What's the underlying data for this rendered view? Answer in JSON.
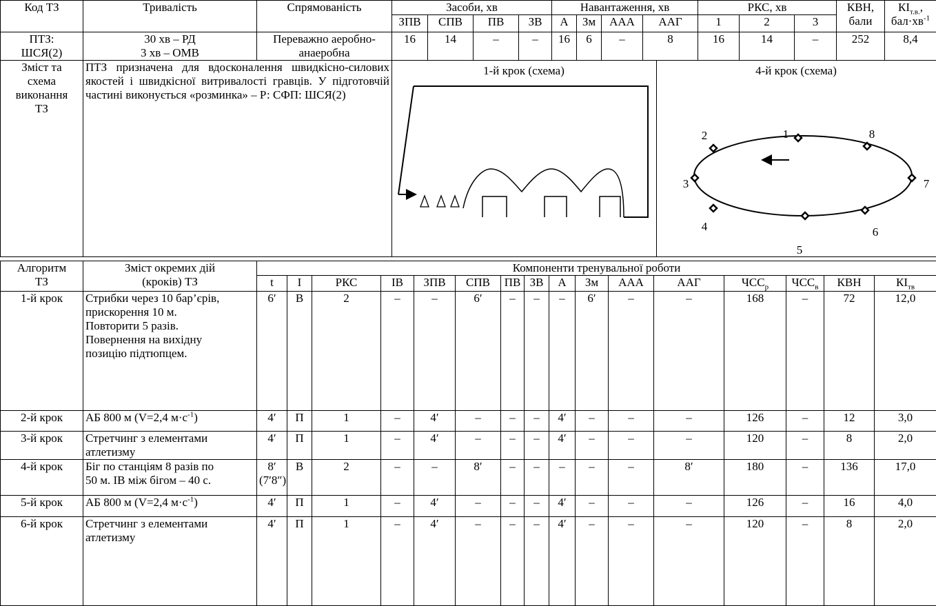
{
  "top": {
    "headers": {
      "code": "Код ТЗ",
      "duration": "Тривалість",
      "direction": "Спрямованість",
      "means": "Засоби, хв",
      "load": "Навантаження, хв",
      "rks": "РКС, хв",
      "kvn": [
        "КВН,",
        "бали"
      ],
      "ki": [
        {
          "main": "КІ",
          "sub": "т.в.",
          "comma": ","
        },
        {
          "main": "бал·хв",
          "sup": "-1"
        }
      ]
    },
    "subheaders": [
      "ЗПВ",
      "СПВ",
      "ПВ",
      "ЗВ",
      "А",
      "Зм",
      "ААА",
      "ААГ",
      "1",
      "2",
      "3"
    ],
    "row": {
      "code": [
        "ПТЗ:",
        "ШСЯ(2)"
      ],
      "duration": [
        "30 хв – РД",
        "3 хв – ОМВ"
      ],
      "direction": [
        "Переважно аеробно-",
        "анаеробна"
      ],
      "values": [
        "16",
        "14",
        "–",
        "–",
        "16",
        "6",
        "–",
        "8",
        "16",
        "14",
        "–",
        "252",
        "8,4"
      ]
    },
    "content": {
      "label": [
        "Зміст та",
        "схема",
        "виконання",
        "ТЗ"
      ],
      "text": "ПТЗ призначена для вдосконалення швидкісно-силових якостей і швидкісної витривалості гравців. У підготовчій частині виконується «розминка» – Р: СФП: ШСЯ(2)",
      "scheme1_title": "1-й крок  (схема)",
      "scheme4_title": "4-й крок (схема)",
      "scheme4_labels": [
        "1",
        "2",
        "3",
        "4",
        "5",
        "6",
        "7",
        "8"
      ]
    }
  },
  "bottom": {
    "headers": {
      "algorithm": [
        "Алгоритм",
        "ТЗ"
      ],
      "content": [
        "Зміст окремих дій",
        "(кроків) ТЗ"
      ],
      "components": "Компоненти тренувальної роботи"
    },
    "columns": [
      "t",
      "I",
      "РКС",
      "ІВ",
      "ЗПВ",
      "СПВ",
      "ПВ",
      "ЗВ",
      "А",
      "Зм",
      "ААА",
      "ААГ",
      {
        "main": "ЧСС",
        "sub": "р"
      },
      {
        "main": "ЧСС",
        "sub": "в"
      },
      "КВН",
      {
        "main": "КІ",
        "sub": "тв"
      }
    ],
    "rows": [
      {
        "step": "1-й крок",
        "lines": [
          "Стрибки через 10 бар’єрів,",
          "прискорення 10 м.",
          "Повторити 5 разів.",
          "Повернення на вихідну",
          "позицію підтюпцем."
        ],
        "cells": [
          "6′",
          "В",
          "2",
          "–",
          "–",
          "6′",
          "–",
          "–",
          "–",
          "6′",
          "–",
          "–",
          "168",
          "–",
          "72",
          "12,0"
        ]
      },
      {
        "step": "2-й крок",
        "lines": [
          {
            "text": "АБ 800 м (V=2,4 м·с",
            "sup": "-1",
            "tail": ")"
          }
        ],
        "cells": [
          "4′",
          "П",
          "1",
          "–",
          "4′",
          "–",
          "–",
          "–",
          "4′",
          "–",
          "–",
          "–",
          "126",
          "–",
          "12",
          "3,0"
        ]
      },
      {
        "step": "3-й крок",
        "lines": [
          "Стретчинг з елементами",
          "атлетизму"
        ],
        "cells": [
          "4′",
          "П",
          "1",
          "–",
          "4′",
          "–",
          "–",
          "–",
          "4′",
          "–",
          "–",
          "–",
          "120",
          "–",
          "8",
          "2,0"
        ]
      },
      {
        "step": "4-й крок",
        "lines": [
          "Біг по станціям 8 разів по",
          "50 м. ІВ між бігом – 40 с."
        ],
        "cells": [
          [
            "8′",
            "(7′8″)"
          ],
          "В",
          "2",
          "–",
          "–",
          "8′",
          "–",
          "–",
          "–",
          "–",
          "–",
          "8′",
          "180",
          "–",
          "136",
          "17,0"
        ]
      },
      {
        "step": "5-й крок",
        "lines": [
          {
            "text": "АБ 800 м (V=2,4 м·с",
            "sup": "-1",
            "tail": ")"
          }
        ],
        "cells": [
          "4′",
          "П",
          "1",
          "–",
          "4′",
          "–",
          "–",
          "–",
          "4′",
          "–",
          "–",
          "–",
          "126",
          "–",
          "16",
          "4,0"
        ]
      },
      {
        "step": "6-й крок",
        "lines": [
          "Стретчинг з елементами",
          "атлетизму"
        ],
        "cells": [
          "4′",
          "П",
          "1",
          "–",
          "4′",
          "–",
          "–",
          "–",
          "4′",
          "–",
          "–",
          "–",
          "120",
          "–",
          "8",
          "2,0"
        ]
      }
    ]
  }
}
